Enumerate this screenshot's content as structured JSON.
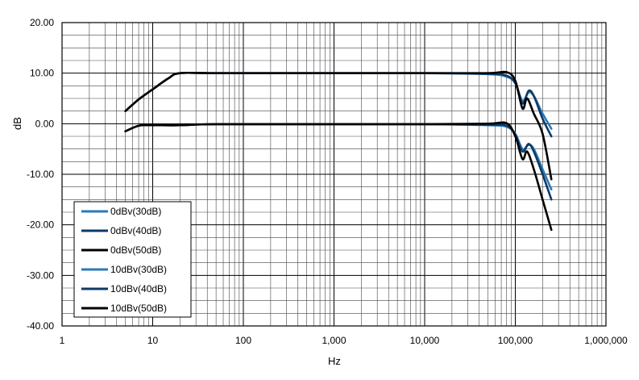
{
  "chart_data": {
    "type": "line",
    "xlabel": "Hz",
    "ylabel": "dB",
    "x_scale": "log",
    "xlim": [
      1,
      1000000
    ],
    "ylim": [
      -40,
      20
    ],
    "grid": true,
    "legend_position": "bottom-left",
    "x_tick_labels": [
      "1",
      "10",
      "100",
      "1,000",
      "10,000",
      "100,000",
      "1,000,000"
    ],
    "y_tick_labels": [
      "20.00",
      "10.00",
      "0.00",
      "-10.00",
      "-20.00",
      "-30.00",
      "-40.00"
    ],
    "series": [
      {
        "name": "0dBv(30dB)",
        "color": "#2a7ab8",
        "x": [
          5,
          7,
          10,
          20,
          50,
          1000,
          10000,
          50000,
          80000,
          100000,
          120000,
          140000,
          160000,
          200000,
          250000
        ],
        "y": [
          -1.5,
          -0.4,
          -0.3,
          -0.3,
          -0.1,
          -0.1,
          -0.1,
          -0.3,
          -0.6,
          -2.0,
          -5.0,
          -4.2,
          -5.0,
          -9.0,
          -13.0
        ]
      },
      {
        "name": "0dBv(40dB)",
        "color": "#0e3a66",
        "x": [
          5,
          7,
          10,
          20,
          50,
          1000,
          10000,
          50000,
          80000,
          100000,
          120000,
          140000,
          160000,
          200000,
          250000
        ],
        "y": [
          -1.5,
          -0.4,
          -0.3,
          -0.3,
          -0.1,
          -0.1,
          -0.1,
          -0.2,
          -0.4,
          -2.2,
          -5.5,
          -4.0,
          -5.5,
          -10.0,
          -15.0
        ]
      },
      {
        "name": "0dBv(50dB)",
        "color": "#000000",
        "x": [
          5,
          7,
          10,
          20,
          50,
          1000,
          10000,
          50000,
          80000,
          100000,
          120000,
          135000,
          160000,
          200000,
          250000
        ],
        "y": [
          -1.5,
          -0.4,
          -0.3,
          -0.3,
          -0.1,
          -0.1,
          -0.1,
          0.0,
          0.1,
          -2.5,
          -7.0,
          -5.5,
          -9.0,
          -15.0,
          -21.0
        ]
      },
      {
        "name": "10dBv(30dB)",
        "color": "#2a7ab8",
        "x": [
          5,
          7,
          10,
          15,
          20,
          50,
          1000,
          10000,
          50000,
          80000,
          100000,
          120000,
          140000,
          160000,
          200000,
          250000
        ],
        "y": [
          2.5,
          4.8,
          6.8,
          9.0,
          10.0,
          10.0,
          10.0,
          10.0,
          9.8,
          9.3,
          8.0,
          4.5,
          6.2,
          5.5,
          2.0,
          -1.0
        ]
      },
      {
        "name": "10dBv(40dB)",
        "color": "#0e3a66",
        "x": [
          5,
          7,
          10,
          15,
          20,
          50,
          1000,
          10000,
          50000,
          80000,
          100000,
          120000,
          140000,
          160000,
          200000,
          250000
        ],
        "y": [
          2.5,
          4.8,
          6.8,
          9.0,
          10.0,
          10.0,
          10.0,
          10.0,
          9.9,
          9.5,
          8.0,
          4.0,
          6.5,
          5.5,
          1.0,
          -2.5
        ]
      },
      {
        "name": "10dBv(50dB)",
        "color": "#000000",
        "x": [
          5,
          7,
          10,
          15,
          20,
          50,
          1000,
          10000,
          50000,
          80000,
          100000,
          120000,
          135000,
          160000,
          200000,
          250000
        ],
        "y": [
          2.5,
          4.8,
          6.8,
          9.0,
          10.0,
          10.0,
          10.0,
          10.0,
          10.0,
          10.2,
          8.5,
          3.0,
          5.0,
          2.0,
          -2.0,
          -11.0
        ]
      }
    ]
  }
}
